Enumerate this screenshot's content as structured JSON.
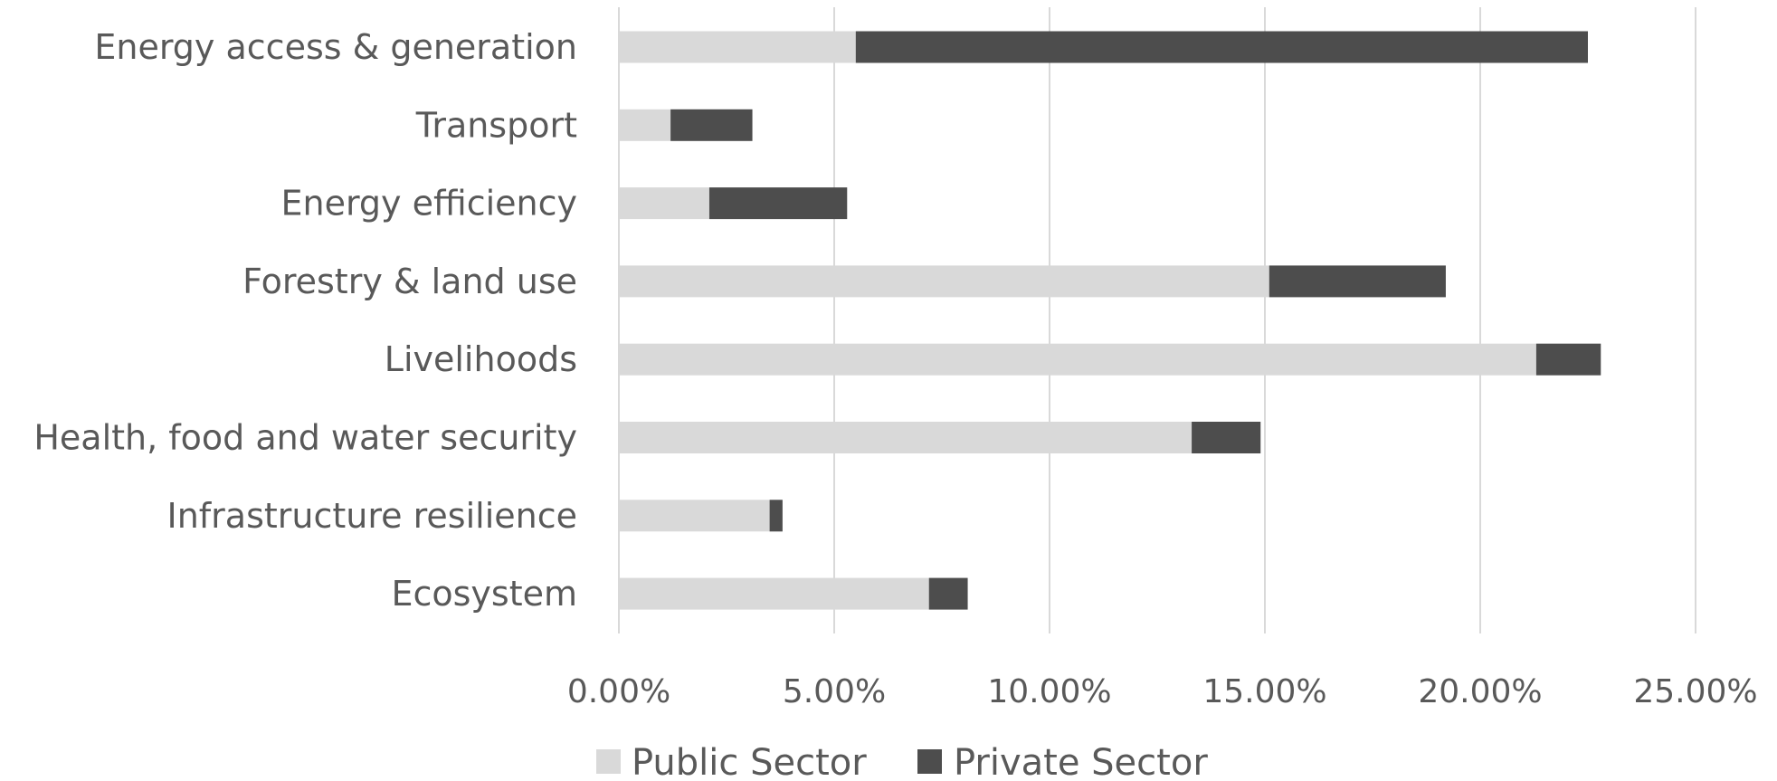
{
  "chart_data": {
    "type": "bar",
    "orientation": "horizontal",
    "stacked": true,
    "categories": [
      "Energy access & generation",
      "Transport",
      "Energy efficiency",
      "Forestry & land use",
      "Livelihoods",
      "Health, food and water security",
      "Infrastructure resilience",
      "Ecosystem"
    ],
    "series": [
      {
        "name": "Public Sector",
        "color": "#d9d9d9",
        "values": [
          0.055,
          0.012,
          0.021,
          0.151,
          0.213,
          0.133,
          0.035,
          0.072
        ]
      },
      {
        "name": "Private Sector",
        "color": "#4d4d4d",
        "values": [
          0.17,
          0.019,
          0.032,
          0.041,
          0.015,
          0.016,
          0.003,
          0.009
        ]
      }
    ],
    "xlim": [
      0,
      0.25
    ],
    "xticks": [
      0,
      0.05,
      0.1,
      0.15,
      0.2,
      0.25
    ],
    "xtick_labels": [
      "0.00%",
      "5.00%",
      "10.00%",
      "15.00%",
      "20.00%",
      "25.00%"
    ],
    "grid": true,
    "legend_position": "bottom"
  }
}
